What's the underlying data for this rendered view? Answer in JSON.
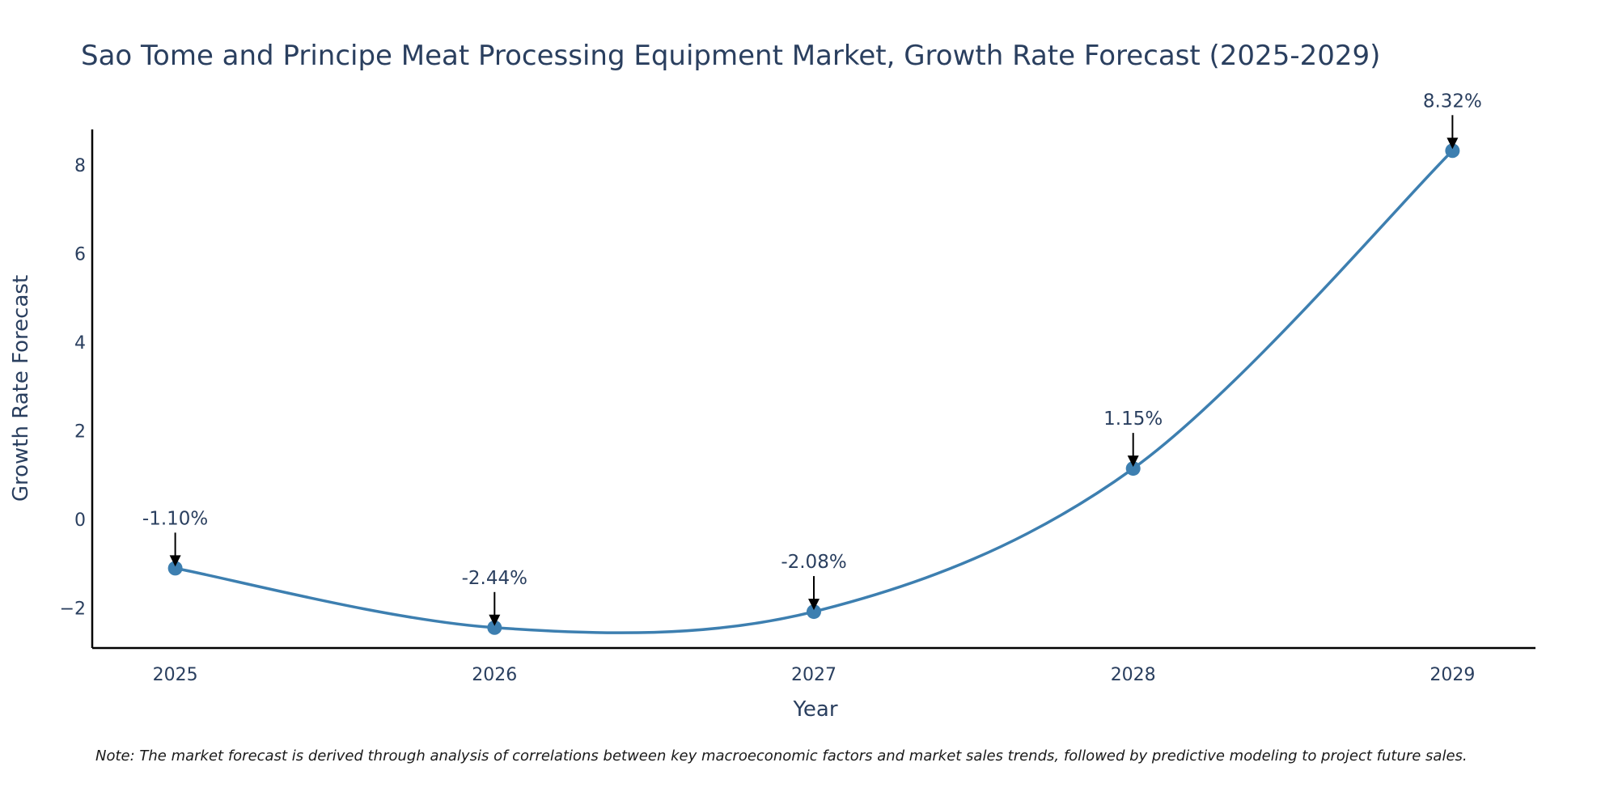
{
  "chart_data": {
    "type": "line",
    "title": "Sao Tome and Principe Meat Processing Equipment Market, Growth Rate Forecast (2025-2029)",
    "xlabel": "Year",
    "ylabel": "Growth Rate Forecast",
    "categories": [
      "2025",
      "2026",
      "2027",
      "2028",
      "2029"
    ],
    "x": [
      2025,
      2026,
      2027,
      2028,
      2029
    ],
    "values": [
      -1.1,
      -2.44,
      -2.08,
      1.15,
      8.32
    ],
    "data_labels": [
      "-1.10%",
      "-2.44%",
      "-2.08%",
      "1.15%",
      "8.32%"
    ],
    "yticks": [
      -2,
      0,
      2,
      4,
      6,
      8
    ],
    "ytick_labels": [
      "−2",
      "0",
      "2",
      "4",
      "6",
      "8"
    ],
    "ylim": [
      -2.9,
      8.8
    ],
    "xlim": [
      2024.74,
      2029.26
    ],
    "grid": false,
    "line_shape": "spline",
    "series_color": "#3d7fb0",
    "arrow_color": "#000000",
    "note": "Note: The market forecast is derived through analysis of correlations between key macroeconomic factors and market sales trends, followed by predictive modeling to project future sales."
  }
}
